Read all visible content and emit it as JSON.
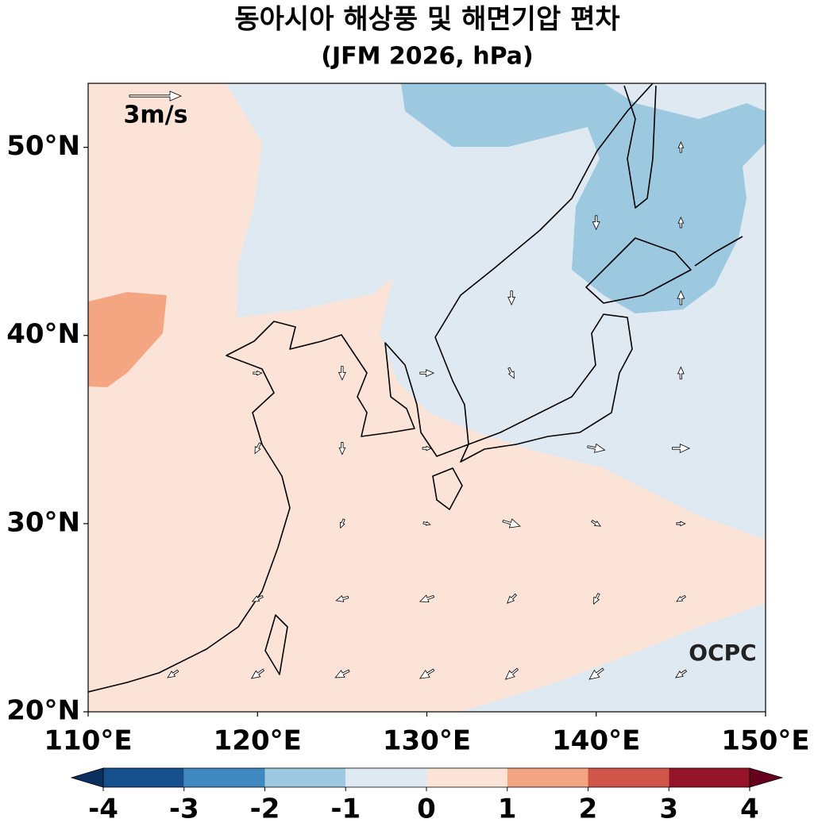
{
  "chart_data": {
    "type": "map",
    "title": "동아시아 해상풍 및 해면기압 편차",
    "subtitle": "(JFM 2026, hPa)",
    "xlim": [
      110,
      150
    ],
    "ylim": [
      20,
      53.4
    ],
    "xticks": [
      {
        "value": 110,
        "label": "110°E"
      },
      {
        "value": 120,
        "label": "120°E"
      },
      {
        "value": 130,
        "label": "130°E"
      },
      {
        "value": 140,
        "label": "140°E"
      },
      {
        "value": 150,
        "label": "150°E"
      }
    ],
    "yticks": [
      {
        "value": 20,
        "label": "20°N"
      },
      {
        "value": 30,
        "label": "30°N"
      },
      {
        "value": 40,
        "label": "40°N"
      },
      {
        "value": 50,
        "label": "50°N"
      }
    ],
    "colorbar": {
      "levels": [
        -4,
        -3,
        -2,
        -1,
        0,
        1,
        2,
        3,
        4
      ],
      "colors": [
        "#154f8c",
        "#3d88bf",
        "#9cc8e0",
        "#dfe9f2",
        "#fbe4d7",
        "#f4a582",
        "#cf5648",
        "#951428"
      ],
      "under": "#0b305f",
      "over": "#67001f"
    },
    "wind": {
      "lons": [
        115,
        120,
        125,
        130,
        135,
        140,
        145
      ],
      "lats": [
        50,
        46,
        42,
        38,
        34,
        30,
        26,
        22
      ],
      "u": [
        [
          null,
          null,
          null,
          null,
          null,
          null,
          0
        ],
        [
          null,
          null,
          null,
          null,
          null,
          0,
          0
        ],
        [
          null,
          null,
          null,
          null,
          0,
          null,
          0
        ],
        [
          null,
          0.5,
          0,
          0.8,
          0.3,
          null,
          0
        ],
        [
          null,
          -0.3,
          0,
          0.5,
          null,
          1,
          1
        ],
        [
          null,
          null,
          -0.2,
          0.4,
          1,
          0.5,
          0.5
        ],
        [
          null,
          -0.6,
          -0.7,
          -0.8,
          -0.5,
          -0.3,
          -0.5
        ],
        [
          -0.6,
          -0.7,
          -0.8,
          -0.8,
          -0.7,
          -0.8,
          -0.6
        ]
      ],
      "v": [
        [
          null,
          null,
          null,
          null,
          null,
          null,
          0.6
        ],
        [
          null,
          null,
          null,
          null,
          null,
          -0.8,
          0.6
        ],
        [
          null,
          null,
          null,
          null,
          -0.8,
          null,
          0.8
        ],
        [
          null,
          0,
          -0.8,
          0,
          -0.6,
          null,
          0.7
        ],
        [
          null,
          -0.6,
          -0.7,
          0,
          null,
          -0.2,
          0
        ],
        [
          null,
          null,
          -0.5,
          -0.1,
          -0.3,
          -0.3,
          0
        ],
        [
          null,
          -0.3,
          -0.2,
          -0.3,
          -0.5,
          -0.6,
          -0.3
        ],
        [
          -0.4,
          -0.5,
          -0.4,
          -0.5,
          -0.6,
          -0.6,
          -0.4
        ]
      ]
    },
    "reference_vector": {
      "value": 3,
      "label": "3m/s"
    },
    "logo": "OCPC"
  }
}
